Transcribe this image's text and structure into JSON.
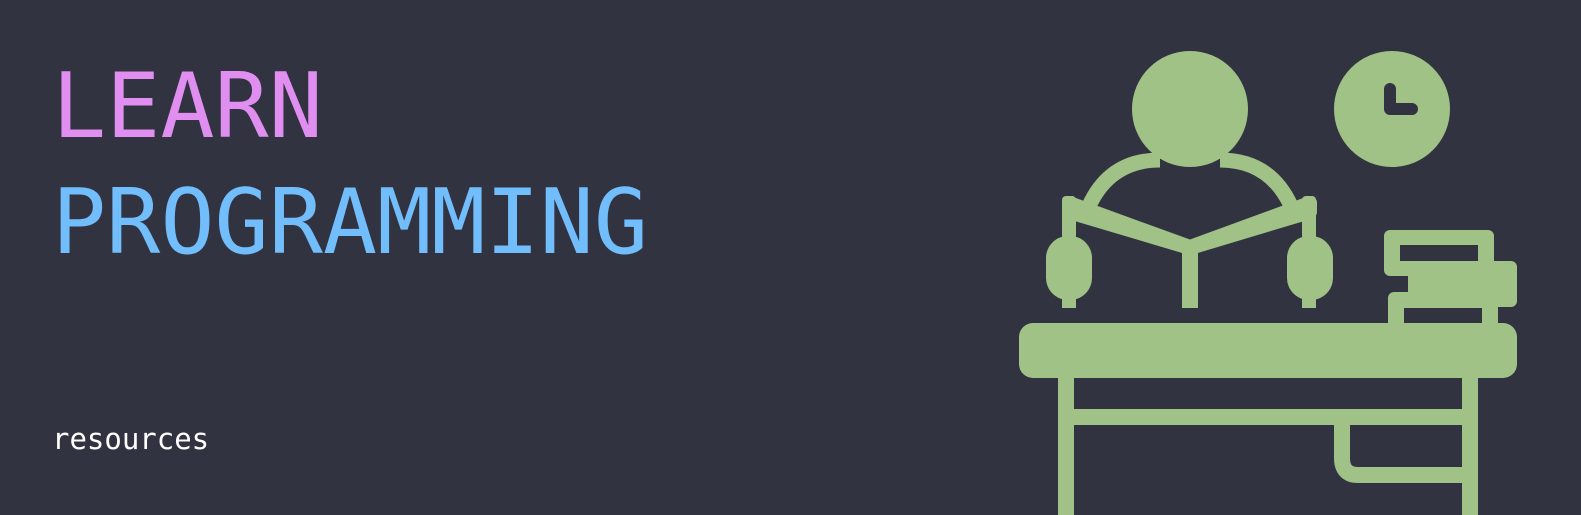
{
  "banner": {
    "title_line_1": "LEARN",
    "title_line_2": "PROGRAMMING",
    "subtitle": "resources"
  },
  "colors": {
    "background": "#313340",
    "title_line_1": "#e08ef0",
    "title_line_2": "#72bdfb",
    "subtitle": "#ffffff",
    "illustration": "#a0c286"
  },
  "illustration": {
    "icon_names": [
      "person-reading-icon",
      "book-icon",
      "clock-icon",
      "desk-icon",
      "stacked-books-icon"
    ]
  }
}
